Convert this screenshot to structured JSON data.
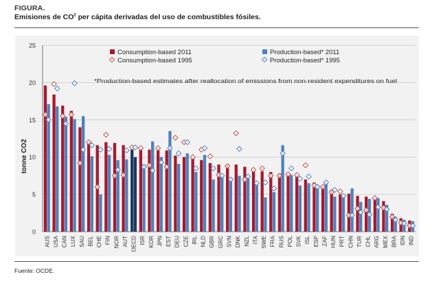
{
  "figure": {
    "label": "FIGURA.",
    "title_main": "Emisiones de CO",
    "title_sup": "2",
    "title_rest": " per cápita derivadas del uso de combustibles fósiles.",
    "source": "Fuente: OCDE."
  },
  "colors": {
    "consumption_2011": "#a6192e",
    "production_2011": "#4f81bd",
    "consumption_1995": "#c0504d",
    "production_1995": "#4f81bd",
    "oecd_bar": "#1f3864"
  },
  "chart_data": {
    "type": "bar",
    "ylabel": "tonne CO2",
    "xlabel": "",
    "ylim": [
      0,
      25
    ],
    "yticks": [
      0,
      5,
      10,
      15,
      20,
      25
    ],
    "annotation": "*Production-based estimates after reallocation of emissions from non-resident expenditures on fuel",
    "categories": [
      "AUS",
      "USA",
      "CAN",
      "LUX",
      "SAU",
      "BEL",
      "CHE",
      "FIN",
      "NOR",
      "AUT",
      "OECD",
      "ISR",
      "KOR",
      "JPN",
      "EST",
      "DEU",
      "CZE",
      "IRL",
      "NLD",
      "GBR",
      "GRC",
      "SVN",
      "DNK",
      "NZL",
      "ITA",
      "SWE",
      "FRA",
      "RUS",
      "POL",
      "SVK",
      "ISL",
      "ESP",
      "ZAF",
      "HUN",
      "PRT",
      "CHN",
      "TUR",
      "CHL",
      "ARG",
      "MEX",
      "BRA",
      "IDN",
      "IND"
    ],
    "series": [
      {
        "name": "Consumption-based 2011",
        "kind": "bar",
        "values": [
          19.6,
          18.4,
          16.9,
          16.2,
          14.0,
          12.0,
          11.6,
          12.0,
          11.9,
          11.6,
          11.0,
          11.1,
          11.0,
          10.9,
          10.9,
          10.2,
          10.0,
          9.9,
          9.6,
          9.2,
          9.0,
          9.0,
          9.0,
          8.7,
          8.1,
          8.1,
          8.0,
          7.8,
          7.8,
          7.5,
          7.0,
          6.6,
          6.1,
          5.6,
          5.0,
          5.1,
          4.8,
          4.7,
          4.5,
          4.1,
          2.4,
          1.8,
          1.5
        ]
      },
      {
        "name": "Production-based* 2011",
        "kind": "bar",
        "values": [
          17.1,
          16.8,
          15.4,
          15.1,
          15.5,
          10.1,
          5.0,
          10.3,
          9.6,
          9.7,
          10.0,
          9.0,
          12.1,
          10.0,
          13.5,
          9.1,
          10.5,
          8.0,
          10.3,
          7.0,
          7.5,
          7.2,
          7.5,
          7.5,
          6.5,
          4.6,
          5.3,
          11.6,
          7.6,
          6.2,
          6.5,
          6.3,
          6.6,
          4.7,
          4.9,
          5.8,
          4.0,
          4.4,
          4.5,
          3.6,
          2.0,
          1.6,
          1.4
        ]
      },
      {
        "name": "Consumption-based 1995",
        "kind": "marker",
        "values": [
          15.7,
          19.8,
          15.5,
          15.7,
          9.2,
          12.0,
          6.0,
          13.0,
          7.5,
          7.6,
          11.3,
          11.2,
          8.9,
          11.2,
          8.7,
          12.6,
          12.0,
          10.0,
          11.0,
          10.1,
          7.6,
          8.8,
          13.2,
          7.0,
          8.3,
          8.5,
          7.5,
          7.5,
          7.7,
          7.6,
          8.9,
          6.2,
          6.0,
          5.3,
          5.4,
          2.2,
          3.1,
          2.9,
          4.5,
          3.2,
          2.0,
          1.2,
          0.8
        ]
      },
      {
        "name": "Production-based* 1995",
        "kind": "marker",
        "values": [
          15.0,
          19.2,
          14.5,
          19.9,
          11.0,
          11.6,
          11.0,
          11.1,
          8.3,
          10.9,
          11.3,
          8.7,
          8.2,
          9.3,
          11.2,
          10.5,
          12.0,
          8.5,
          11.2,
          8.5,
          7.5,
          7.0,
          11.1,
          7.4,
          6.5,
          6.6,
          5.8,
          10.5,
          8.5,
          7.1,
          7.4,
          6.0,
          6.6,
          5.6,
          4.8,
          2.2,
          2.6,
          2.3,
          3.3,
          3.0,
          1.6,
          1.1,
          0.8
        ]
      }
    ]
  }
}
